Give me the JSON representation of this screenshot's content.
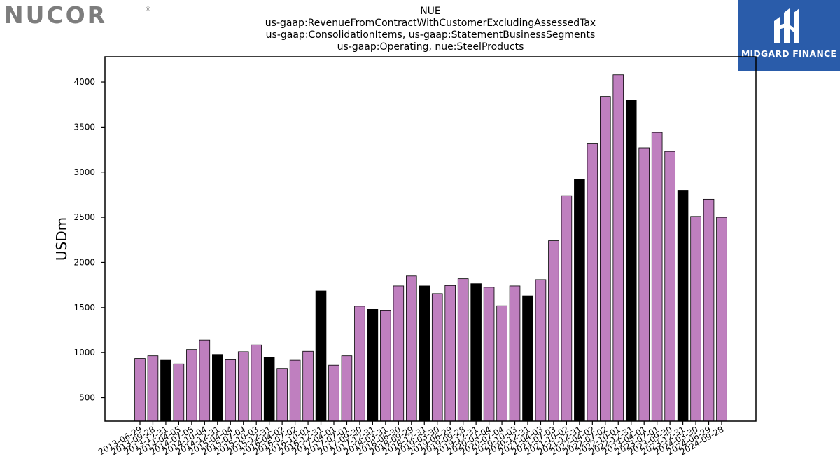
{
  "brand": {
    "logo_text": "NUCOR",
    "registered_mark": "®"
  },
  "partner": {
    "name": "MIDGARD FINANCE",
    "icon": "midgard-m-logo-icon",
    "color": "#2a5caa"
  },
  "chart_data": {
    "type": "bar",
    "title_lines": [
      "NUE",
      "us-gaap:RevenueFromContractWithCustomerExcludingAssessedTax",
      "us-gaap:ConsolidationItems, us-gaap:StatementBusinessSegments",
      "us-gaap:Operating, nue:SteelProducts"
    ],
    "ylabel": "USDm",
    "xlabel": "",
    "ylim": [
      240,
      4280
    ],
    "yticks": [
      500,
      1000,
      1500,
      2000,
      2500,
      3000,
      3500,
      4000
    ],
    "grid": false,
    "colors": {
      "quarter": "#bf7fbf",
      "fiscal_year_end": "#000000",
      "edge": "#000000"
    },
    "categories": [
      "2013-06-29",
      "2013-09-28",
      "2013-12-31",
      "2014-04-05",
      "2014-07-05",
      "2014-10-04",
      "2014-12-31",
      "2015-04-04",
      "2015-07-04",
      "2015-10-03",
      "2015-12-31",
      "2016-04-02",
      "2016-07-02",
      "2016-10-01",
      "2016-12-31",
      "2017-04-01",
      "2017-07-01",
      "2017-09-30",
      "2017-12-31",
      "2018-03-31",
      "2018-06-30",
      "2018-09-29",
      "2018-12-31",
      "2019-03-30",
      "2019-06-29",
      "2019-09-28",
      "2019-12-31",
      "2020-04-04",
      "2020-07-04",
      "2020-10-03",
      "2020-12-31",
      "2021-04-03",
      "2021-07-03",
      "2021-10-02",
      "2021-12-31",
      "2022-04-02",
      "2022-07-02",
      "2022-10-01",
      "2022-12-31",
      "2023-04-01",
      "2023-07-01",
      "2023-09-30",
      "2023-12-31",
      "2024-03-30",
      "2024-06-29",
      "2024-09-28"
    ],
    "values": [
      935,
      965,
      915,
      875,
      1035,
      1140,
      980,
      920,
      1010,
      1085,
      950,
      825,
      915,
      1015,
      1685,
      860,
      965,
      1515,
      1480,
      1465,
      1740,
      1850,
      1740,
      1655,
      1745,
      1820,
      1765,
      1725,
      1520,
      1740,
      1630,
      1810,
      2240,
      2740,
      2925,
      3320,
      3840,
      4080,
      3800,
      3270,
      3440,
      3230,
      2800,
      2510,
      2700,
      2500
    ],
    "is_fiscal_year_end": [
      false,
      false,
      true,
      false,
      false,
      false,
      true,
      false,
      false,
      false,
      true,
      false,
      false,
      false,
      true,
      false,
      false,
      false,
      true,
      false,
      false,
      false,
      true,
      false,
      false,
      false,
      true,
      false,
      false,
      false,
      true,
      false,
      false,
      false,
      true,
      false,
      false,
      false,
      true,
      false,
      false,
      false,
      true,
      false,
      false,
      false
    ]
  }
}
